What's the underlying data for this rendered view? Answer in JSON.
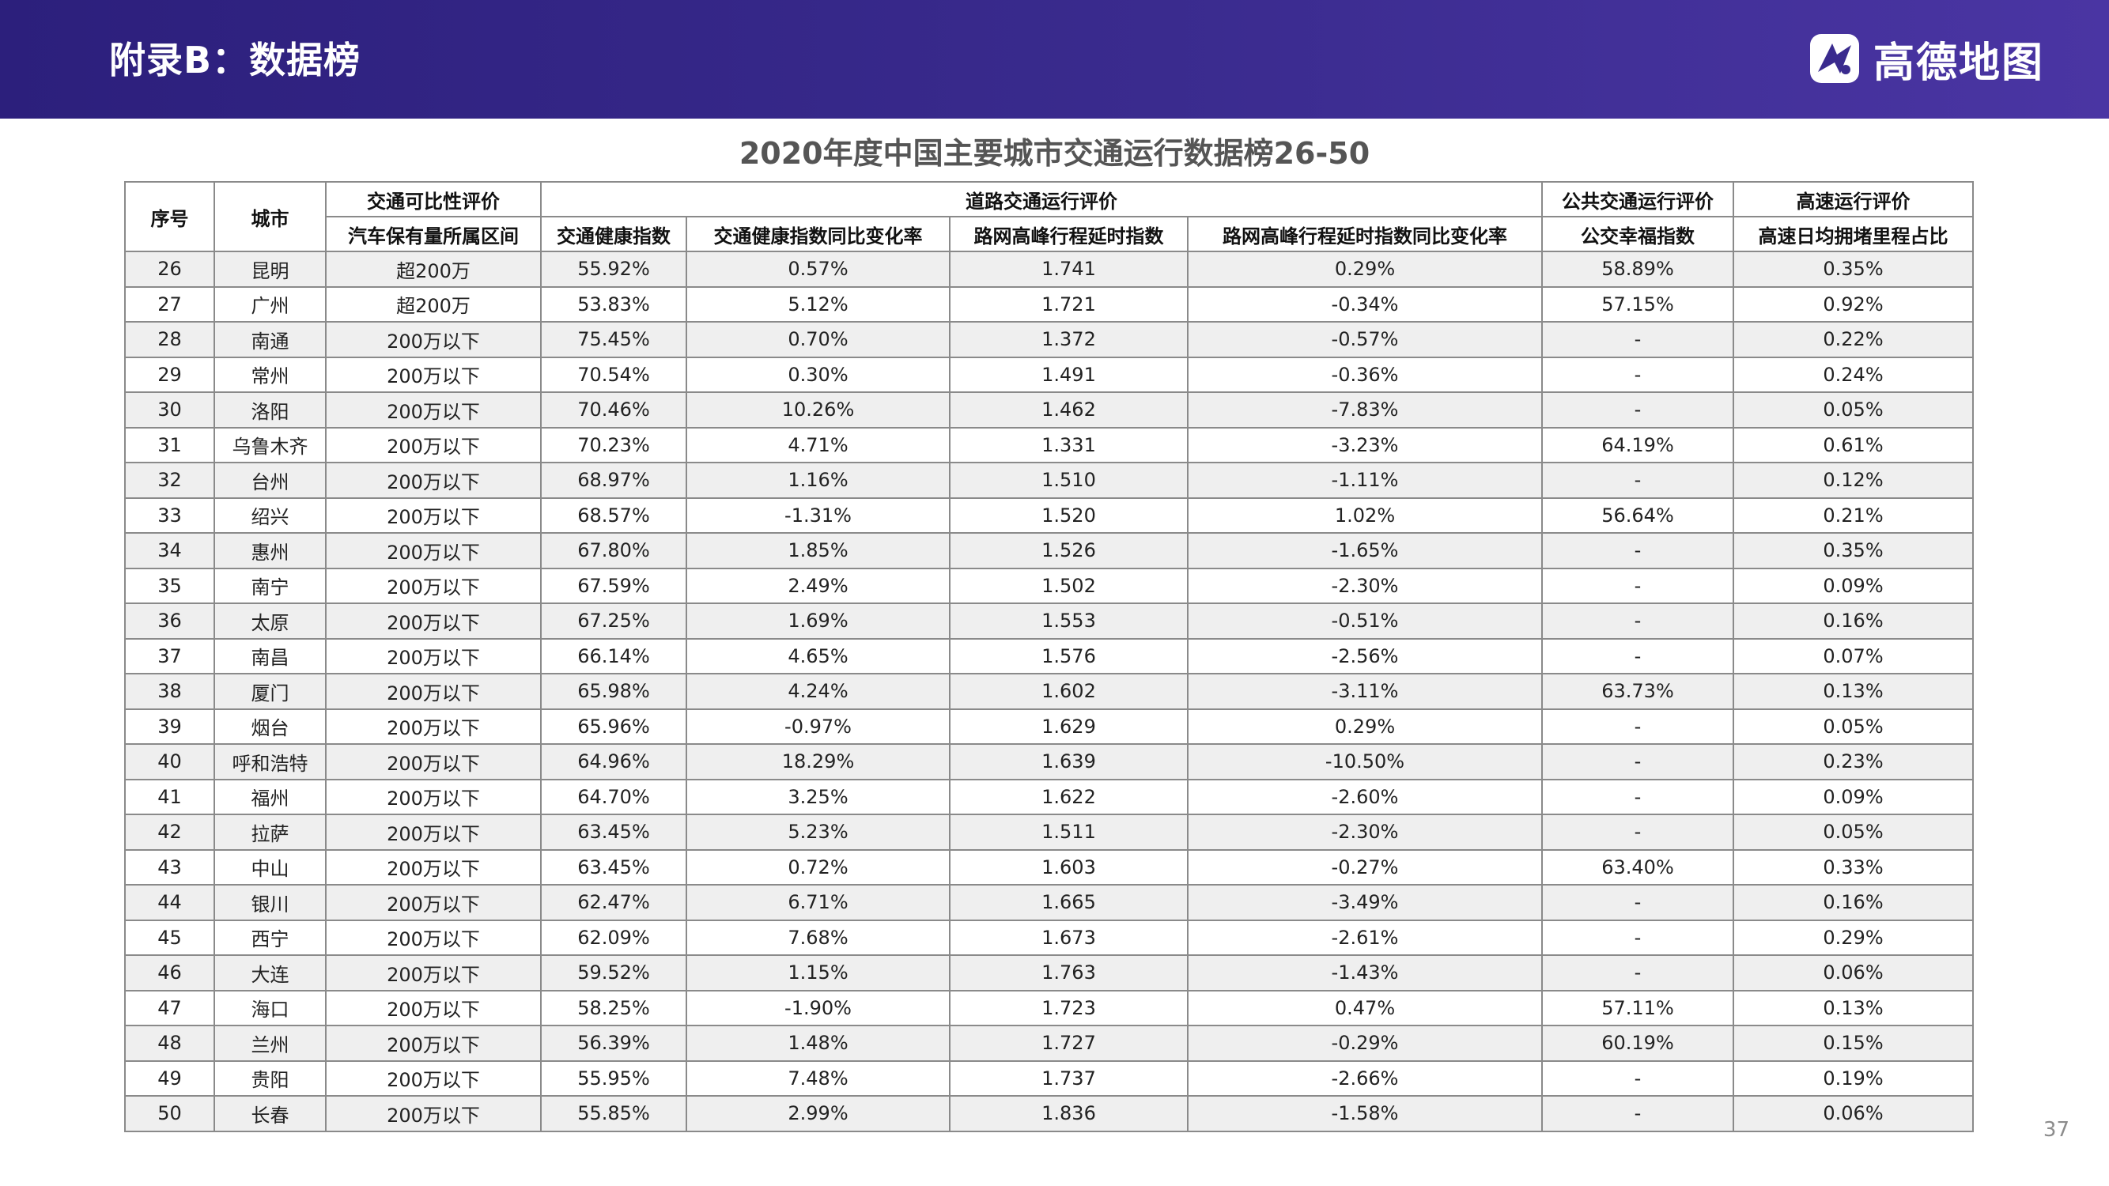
{
  "header": {
    "title": "附录B：数据榜",
    "brand": "高德地图",
    "brand_icon": "amap-logo-icon"
  },
  "table_title": "2020年度中国主要城市交通运行数据榜26-50",
  "group_headers": {
    "rank": "序号",
    "city": "城市",
    "comparability": "交通可比性评价",
    "road": "道路交通运行评价",
    "transit": "公共交通运行评价",
    "highway": "高速运行评价"
  },
  "sub_headers": {
    "car_ownership": "汽车保有量所属区间",
    "health_index": "交通健康指数",
    "health_change": "交通健康指数同比变化率",
    "delay_index": "路网高峰行程延时指数",
    "delay_change": "路网高峰行程延时指数同比变化率",
    "transit_happiness": "公交幸福指数",
    "congestion_share": "高速日均拥堵里程占比"
  },
  "rows": [
    [
      "26",
      "昆明",
      "超200万",
      "55.92%",
      "0.57%",
      "1.741",
      "0.29%",
      "58.89%",
      "0.35%"
    ],
    [
      "27",
      "广州",
      "超200万",
      "53.83%",
      "5.12%",
      "1.721",
      "-0.34%",
      "57.15%",
      "0.92%"
    ],
    [
      "28",
      "南通",
      "200万以下",
      "75.45%",
      "0.70%",
      "1.372",
      "-0.57%",
      "-",
      "0.22%"
    ],
    [
      "29",
      "常州",
      "200万以下",
      "70.54%",
      "0.30%",
      "1.491",
      "-0.36%",
      "-",
      "0.24%"
    ],
    [
      "30",
      "洛阳",
      "200万以下",
      "70.46%",
      "10.26%",
      "1.462",
      "-7.83%",
      "-",
      "0.05%"
    ],
    [
      "31",
      "乌鲁木齐",
      "200万以下",
      "70.23%",
      "4.71%",
      "1.331",
      "-3.23%",
      "64.19%",
      "0.61%"
    ],
    [
      "32",
      "台州",
      "200万以下",
      "68.97%",
      "1.16%",
      "1.510",
      "-1.11%",
      "-",
      "0.12%"
    ],
    [
      "33",
      "绍兴",
      "200万以下",
      "68.57%",
      "-1.31%",
      "1.520",
      "1.02%",
      "56.64%",
      "0.21%"
    ],
    [
      "34",
      "惠州",
      "200万以下",
      "67.80%",
      "1.85%",
      "1.526",
      "-1.65%",
      "-",
      "0.35%"
    ],
    [
      "35",
      "南宁",
      "200万以下",
      "67.59%",
      "2.49%",
      "1.502",
      "-2.30%",
      "-",
      "0.09%"
    ],
    [
      "36",
      "太原",
      "200万以下",
      "67.25%",
      "1.69%",
      "1.553",
      "-0.51%",
      "-",
      "0.16%"
    ],
    [
      "37",
      "南昌",
      "200万以下",
      "66.14%",
      "4.65%",
      "1.576",
      "-2.56%",
      "-",
      "0.07%"
    ],
    [
      "38",
      "厦门",
      "200万以下",
      "65.98%",
      "4.24%",
      "1.602",
      "-3.11%",
      "63.73%",
      "0.13%"
    ],
    [
      "39",
      "烟台",
      "200万以下",
      "65.96%",
      "-0.97%",
      "1.629",
      "0.29%",
      "-",
      "0.05%"
    ],
    [
      "40",
      "呼和浩特",
      "200万以下",
      "64.96%",
      "18.29%",
      "1.639",
      "-10.50%",
      "-",
      "0.23%"
    ],
    [
      "41",
      "福州",
      "200万以下",
      "64.70%",
      "3.25%",
      "1.622",
      "-2.60%",
      "-",
      "0.09%"
    ],
    [
      "42",
      "拉萨",
      "200万以下",
      "63.45%",
      "5.23%",
      "1.511",
      "-2.30%",
      "-",
      "0.05%"
    ],
    [
      "43",
      "中山",
      "200万以下",
      "63.45%",
      "0.72%",
      "1.603",
      "-0.27%",
      "63.40%",
      "0.33%"
    ],
    [
      "44",
      "银川",
      "200万以下",
      "62.47%",
      "6.71%",
      "1.665",
      "-3.49%",
      "-",
      "0.16%"
    ],
    [
      "45",
      "西宁",
      "200万以下",
      "62.09%",
      "7.68%",
      "1.673",
      "-2.61%",
      "-",
      "0.29%"
    ],
    [
      "46",
      "大连",
      "200万以下",
      "59.52%",
      "1.15%",
      "1.763",
      "-1.43%",
      "-",
      "0.06%"
    ],
    [
      "47",
      "海口",
      "200万以下",
      "58.25%",
      "-1.90%",
      "1.723",
      "0.47%",
      "57.11%",
      "0.13%"
    ],
    [
      "48",
      "兰州",
      "200万以下",
      "56.39%",
      "1.48%",
      "1.727",
      "-0.29%",
      "60.19%",
      "0.15%"
    ],
    [
      "49",
      "贵阳",
      "200万以下",
      "55.95%",
      "7.48%",
      "1.737",
      "-2.66%",
      "-",
      "0.19%"
    ],
    [
      "50",
      "长春",
      "200万以下",
      "55.85%",
      "2.99%",
      "1.836",
      "-1.58%",
      "-",
      "0.06%"
    ]
  ],
  "page_number": "37"
}
